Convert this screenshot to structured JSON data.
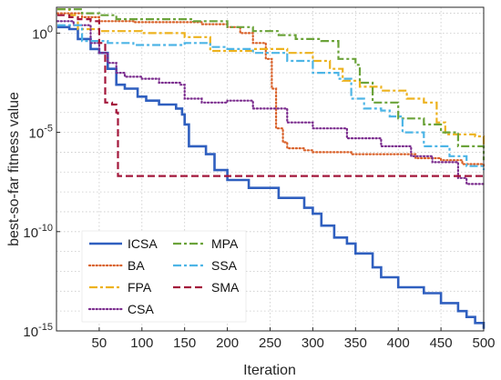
{
  "chart_data": {
    "type": "line",
    "title": "",
    "xlabel": "Iteration",
    "ylabel": "best-so-far fitness value",
    "xlim": [
      0,
      500
    ],
    "ylim_exponent": [
      -15,
      1.3
    ],
    "yscale": "log",
    "grid": true,
    "legend_position": "bottom-left",
    "x_ticks": [
      {
        "value": 50,
        "label": "50"
      },
      {
        "value": 100,
        "label": "100"
      },
      {
        "value": 150,
        "label": "150"
      },
      {
        "value": 200,
        "label": "200"
      },
      {
        "value": 250,
        "label": "250"
      },
      {
        "value": 300,
        "label": "300"
      },
      {
        "value": 350,
        "label": "350"
      },
      {
        "value": 400,
        "label": "400"
      },
      {
        "value": 450,
        "label": "450"
      },
      {
        "value": 500,
        "label": "500"
      }
    ],
    "y_ticks": [
      {
        "exp": 0,
        "base": "10",
        "sup": "0",
        "label": "10^0"
      },
      {
        "exp": -5,
        "base": "10",
        "sup": "-5",
        "label": "10^-5"
      },
      {
        "exp": -10,
        "base": "10",
        "sup": "-10",
        "label": "10^-10"
      },
      {
        "exp": -15,
        "base": "10",
        "sup": "-15",
        "label": "10^-15"
      }
    ],
    "series": [
      {
        "name": "ICSA",
        "color": "#2f5fbf",
        "dash": "solid",
        "log10_points": [
          [
            1,
            0.3
          ],
          [
            15,
            0.2
          ],
          [
            25,
            -0.3
          ],
          [
            40,
            -0.8
          ],
          [
            50,
            -1.0
          ],
          [
            60,
            -1.8
          ],
          [
            70,
            -2.6
          ],
          [
            80,
            -2.8
          ],
          [
            95,
            -3.2
          ],
          [
            105,
            -3.4
          ],
          [
            120,
            -3.6
          ],
          [
            140,
            -3.8
          ],
          [
            147,
            -4.1
          ],
          [
            150,
            -4.6
          ],
          [
            155,
            -5.7
          ],
          [
            175,
            -6.1
          ],
          [
            185,
            -6.9
          ],
          [
            200,
            -7.4
          ],
          [
            225,
            -7.8
          ],
          [
            260,
            -8.3
          ],
          [
            290,
            -8.8
          ],
          [
            300,
            -9.1
          ],
          [
            310,
            -9.7
          ],
          [
            325,
            -10.3
          ],
          [
            340,
            -10.6
          ],
          [
            350,
            -11.1
          ],
          [
            370,
            -11.8
          ],
          [
            380,
            -12.3
          ],
          [
            400,
            -12.8
          ],
          [
            430,
            -13.1
          ],
          [
            450,
            -13.6
          ],
          [
            470,
            -14.0
          ],
          [
            480,
            -14.3
          ],
          [
            490,
            -14.6
          ],
          [
            500,
            -14.9
          ]
        ]
      },
      {
        "name": "BA",
        "color": "#d9622b",
        "dash": "dotted",
        "log10_points": [
          [
            1,
            1.0
          ],
          [
            30,
            0.8
          ],
          [
            50,
            0.6
          ],
          [
            90,
            0.55
          ],
          [
            170,
            0.45
          ],
          [
            200,
            0.3
          ],
          [
            215,
            0.0
          ],
          [
            230,
            -0.5
          ],
          [
            245,
            -1.3
          ],
          [
            252,
            -2.8
          ],
          [
            257,
            -4.8
          ],
          [
            265,
            -5.5
          ],
          [
            270,
            -5.8
          ],
          [
            290,
            -5.9
          ],
          [
            300,
            -6.0
          ],
          [
            325,
            -6.0
          ],
          [
            345,
            -6.1
          ],
          [
            375,
            -6.1
          ],
          [
            420,
            -6.3
          ],
          [
            450,
            -6.4
          ],
          [
            475,
            -6.6
          ],
          [
            500,
            -6.8
          ]
        ]
      },
      {
        "name": "FPA",
        "color": "#edb21e",
        "dash": "dashdot",
        "log10_points": [
          [
            1,
            1.2
          ],
          [
            15,
            0.9
          ],
          [
            25,
            0.2
          ],
          [
            50,
            0.1
          ],
          [
            100,
            0.0
          ],
          [
            150,
            -0.2
          ],
          [
            180,
            -0.9
          ],
          [
            230,
            -0.8
          ],
          [
            270,
            -1.0
          ],
          [
            300,
            -1.4
          ],
          [
            320,
            -1.8
          ],
          [
            335,
            -2.4
          ],
          [
            355,
            -2.7
          ],
          [
            380,
            -2.9
          ],
          [
            410,
            -3.3
          ],
          [
            430,
            -3.5
          ],
          [
            445,
            -4.5
          ],
          [
            455,
            -5.1
          ],
          [
            490,
            -5.2
          ],
          [
            500,
            -5.8
          ]
        ]
      },
      {
        "name": "CSA",
        "color": "#7b2d8e",
        "dash": "dotted",
        "log10_points": [
          [
            1,
            0.6
          ],
          [
            20,
            0.4
          ],
          [
            40,
            -0.5
          ],
          [
            50,
            -1.0
          ],
          [
            60,
            -1.5
          ],
          [
            70,
            -2.0
          ],
          [
            80,
            -2.2
          ],
          [
            100,
            -2.3
          ],
          [
            120,
            -2.5
          ],
          [
            145,
            -2.6
          ],
          [
            150,
            -3.3
          ],
          [
            170,
            -3.5
          ],
          [
            200,
            -3.4
          ],
          [
            230,
            -3.8
          ],
          [
            270,
            -4.5
          ],
          [
            300,
            -4.8
          ],
          [
            340,
            -5.3
          ],
          [
            380,
            -5.7
          ],
          [
            415,
            -6.2
          ],
          [
            440,
            -6.5
          ],
          [
            455,
            -6.5
          ],
          [
            470,
            -7.3
          ],
          [
            480,
            -7.6
          ],
          [
            500,
            -7.7
          ]
        ]
      },
      {
        "name": "MPA",
        "color": "#6ba33a",
        "dash": "dashdot",
        "log10_points": [
          [
            1,
            1.2
          ],
          [
            30,
            1.0
          ],
          [
            50,
            0.9
          ],
          [
            70,
            0.7
          ],
          [
            130,
            0.7
          ],
          [
            160,
            0.6
          ],
          [
            200,
            0.3
          ],
          [
            230,
            0.1
          ],
          [
            260,
            -0.1
          ],
          [
            280,
            -0.3
          ],
          [
            310,
            -0.4
          ],
          [
            330,
            -1.3
          ],
          [
            350,
            -1.6
          ],
          [
            355,
            -2.5
          ],
          [
            370,
            -3.5
          ],
          [
            400,
            -4.3
          ],
          [
            430,
            -4.6
          ],
          [
            450,
            -5.0
          ],
          [
            470,
            -5.7
          ],
          [
            500,
            -6.4
          ]
        ]
      },
      {
        "name": "SSA",
        "color": "#4db5e6",
        "dash": "dashdot",
        "log10_points": [
          [
            1,
            0.4
          ],
          [
            15,
            0.4
          ],
          [
            30,
            -0.4
          ],
          [
            60,
            -0.5
          ],
          [
            90,
            -0.6
          ],
          [
            120,
            -0.6
          ],
          [
            150,
            -0.5
          ],
          [
            180,
            -0.7
          ],
          [
            200,
            -0.8
          ],
          [
            230,
            -1.0
          ],
          [
            270,
            -1.4
          ],
          [
            300,
            -2.0
          ],
          [
            330,
            -2.3
          ],
          [
            345,
            -3.3
          ],
          [
            360,
            -3.8
          ],
          [
            380,
            -3.9
          ],
          [
            390,
            -4.2
          ],
          [
            405,
            -5.0
          ],
          [
            430,
            -5.7
          ],
          [
            460,
            -6.2
          ],
          [
            480,
            -6.7
          ],
          [
            500,
            -6.9
          ]
        ]
      },
      {
        "name": "SMA",
        "color": "#a3173b",
        "dash": "dashed",
        "log10_points": [
          [
            1,
            0.9
          ],
          [
            15,
            0.8
          ],
          [
            25,
            0.7
          ],
          [
            40,
            0.6
          ],
          [
            50,
            -0.5
          ],
          [
            57,
            -3.5
          ],
          [
            65,
            -3.6
          ],
          [
            70,
            -4.0
          ],
          [
            72,
            -7.2
          ],
          [
            100,
            -7.2
          ],
          [
            200,
            -7.2
          ],
          [
            300,
            -7.2
          ],
          [
            400,
            -7.2
          ],
          [
            500,
            -7.2
          ]
        ]
      }
    ]
  }
}
